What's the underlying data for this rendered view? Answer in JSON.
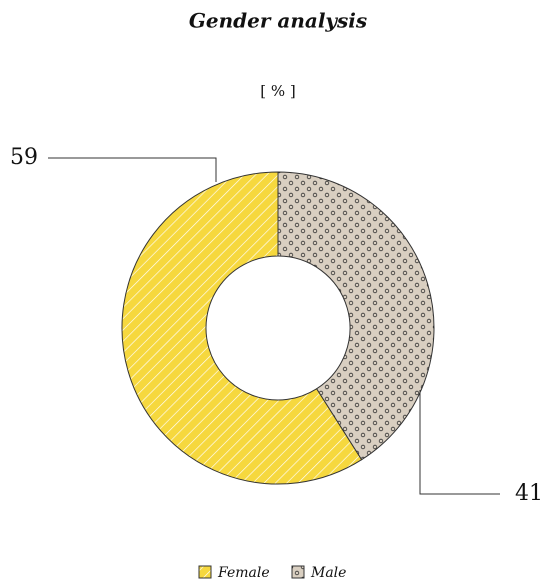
{
  "chart_data": {
    "type": "donut",
    "title": "Gender analysis",
    "subtitle": "[ % ]",
    "categories": [
      "Female",
      "Male"
    ],
    "values": [
      59,
      41
    ],
    "colors": [
      "#f6d83e",
      "#d9cfc1"
    ]
  }
}
